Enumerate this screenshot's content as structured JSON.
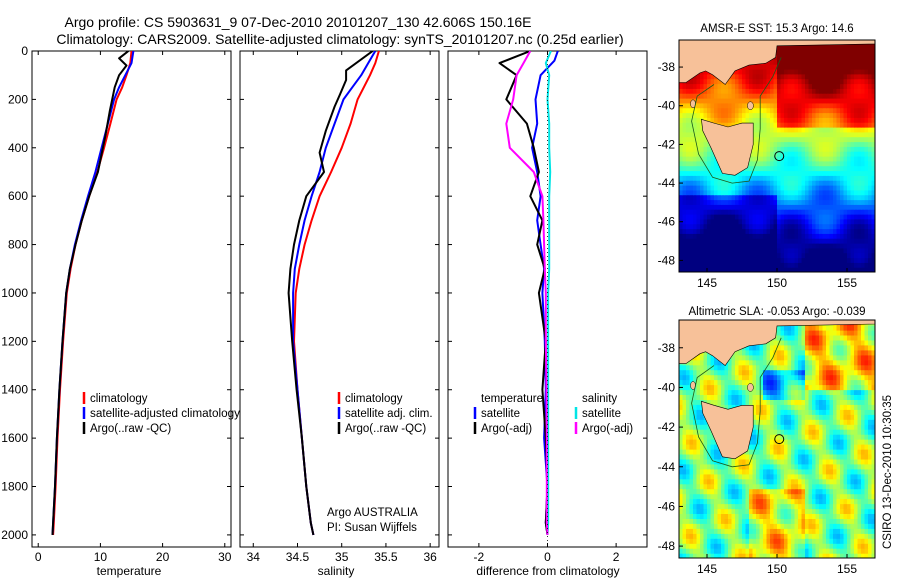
{
  "header": {
    "title_line1": "Argo profile: CS 5903631_9 07-Dec-2010 20101207_130 42.606S 150.16E",
    "title_line2": "Climatology: CARS2009. Satellite-adjusted climatology: synTS_20101207.nc (0.25d earlier)"
  },
  "side_text": "CSIRO 13-Dec-2010 10:30:35",
  "colors": {
    "climatology": "#ff0000",
    "satellite": "#0000ff",
    "argo": "#000000",
    "sat_salinity": "#00e5e5",
    "argo_adj_salinity": "#ff00ff",
    "land": "#f7c199"
  },
  "chart_data": [
    {
      "type": "line",
      "name_key": "temperature",
      "xlabel": "temperature",
      "xlim": [
        -1,
        31
      ],
      "ylim": [
        2050,
        0
      ],
      "xticks": [
        "0",
        "10",
        "20",
        "30"
      ],
      "yticks": [
        "0",
        "200",
        "400",
        "600",
        "800",
        "1000",
        "1200",
        "1400",
        "1600",
        "1800",
        "2000"
      ],
      "legend": [
        "climatology",
        "satellite-adjusted climatology",
        "Argo(..raw -QC)"
      ],
      "series": [
        {
          "name": "climatology",
          "color": "#ff0000",
          "x": [
            15.0,
            14.8,
            14.2,
            13.5,
            12.6,
            11.6,
            10.6,
            9.5,
            8.2,
            7.0,
            6.0,
            5.2,
            4.6,
            4.0,
            3.5,
            3.1,
            2.8,
            2.5,
            2.4
          ],
          "y": [
            0,
            50,
            100,
            150,
            200,
            300,
            400,
            500,
            600,
            700,
            800,
            900,
            1000,
            1200,
            1400,
            1600,
            1800,
            1950,
            2000
          ]
        },
        {
          "name": "satellite-adjusted climatology",
          "color": "#0000ff",
          "x": [
            15.3,
            15.0,
            14.0,
            13.0,
            12.2,
            11.2,
            10.2,
            9.2,
            8.0,
            6.9,
            5.9,
            5.1,
            4.5,
            3.9,
            3.4,
            3.0,
            2.7,
            2.4,
            2.3
          ],
          "y": [
            0,
            50,
            100,
            150,
            200,
            300,
            400,
            500,
            600,
            700,
            800,
            900,
            1000,
            1200,
            1400,
            1600,
            1800,
            1950,
            2000
          ]
        },
        {
          "name": "Argo(..raw -QC)",
          "color": "#000000",
          "x": [
            14.5,
            13.0,
            14.2,
            13.0,
            12.3,
            11.5,
            10.8,
            9.6,
            8.2,
            7.0,
            6.0,
            5.1,
            4.5,
            3.9,
            3.4,
            3.0,
            2.7,
            2.4,
            2.3
          ],
          "y": [
            0,
            30,
            60,
            100,
            150,
            250,
            350,
            500,
            600,
            700,
            800,
            900,
            1000,
            1200,
            1400,
            1600,
            1800,
            1950,
            2000
          ]
        }
      ]
    },
    {
      "type": "line",
      "name_key": "salinity",
      "xlabel": "salinity",
      "xlim": [
        33.85,
        36.1
      ],
      "ylim": [
        2050,
        0
      ],
      "xticks": [
        "34",
        "34.5",
        "35",
        "35.5",
        "36"
      ],
      "legend": [
        "climatology",
        "satellite adj. clim.",
        "Argo(..raw -QC)"
      ],
      "annotation": [
        "Argo AUSTRALIA",
        "PI: Susan Wijffels"
      ],
      "series": [
        {
          "name": "climatology",
          "color": "#ff0000",
          "x": [
            35.42,
            35.38,
            35.32,
            35.25,
            35.18,
            35.1,
            35.0,
            34.88,
            34.75,
            34.66,
            34.58,
            34.52,
            34.48,
            34.46,
            34.5,
            34.55,
            34.6,
            34.65,
            34.68
          ],
          "y": [
            0,
            50,
            100,
            150,
            200,
            300,
            400,
            500,
            600,
            700,
            800,
            900,
            1000,
            1200,
            1400,
            1600,
            1800,
            1950,
            2000
          ]
        },
        {
          "name": "satellite adj. clim.",
          "color": "#0000ff",
          "x": [
            35.38,
            35.3,
            35.22,
            35.12,
            35.02,
            34.92,
            34.82,
            34.75,
            34.66,
            34.58,
            34.52,
            34.47,
            34.45,
            34.45,
            34.5,
            34.55,
            34.6,
            34.65,
            34.68
          ],
          "y": [
            0,
            50,
            100,
            150,
            200,
            300,
            400,
            500,
            600,
            700,
            800,
            900,
            1000,
            1200,
            1400,
            1600,
            1800,
            1950,
            2000
          ]
        },
        {
          "name": "Argo(..raw -QC)",
          "color": "#000000",
          "x": [
            35.35,
            35.05,
            35.05,
            34.98,
            34.92,
            34.82,
            34.75,
            34.8,
            34.6,
            34.52,
            34.46,
            34.42,
            34.4,
            34.44,
            34.49,
            34.55,
            34.6,
            34.65,
            34.68
          ],
          "y": [
            0,
            80,
            120,
            180,
            230,
            330,
            420,
            500,
            600,
            700,
            800,
            900,
            1000,
            1200,
            1400,
            1600,
            1800,
            1950,
            2000
          ]
        }
      ]
    },
    {
      "type": "line",
      "name_key": "difference",
      "xlabel": "difference from climatology",
      "xlim": [
        -2.9,
        2.9
      ],
      "ylim": [
        2050,
        0
      ],
      "xticks": [
        "-2",
        "0",
        "2"
      ],
      "legend_left": [
        "temperature",
        "satellite",
        "Argo(-adj)"
      ],
      "legend_right": [
        "salinity",
        "satellite",
        "Argo(-adj)"
      ],
      "series": [
        {
          "name": "temperature satellite",
          "color": "#0000ff",
          "x": [
            0.3,
            0.2,
            -0.2,
            -0.35,
            -0.3,
            -0.45,
            -0.3,
            -0.2,
            -0.3,
            -0.2,
            -0.1,
            -0.15,
            -0.08,
            -0.05,
            -0.1,
            0.0,
            -0.05,
            0.0
          ],
          "y": [
            0,
            40,
            100,
            200,
            300,
            400,
            500,
            600,
            700,
            800,
            900,
            1000,
            1200,
            1400,
            1600,
            1800,
            1950,
            2000
          ]
        },
        {
          "name": "temperature Argo(-adj)",
          "color": "#000000",
          "x": [
            -0.5,
            -1.4,
            -0.9,
            -1.2,
            -0.6,
            -0.4,
            -0.25,
            -0.5,
            -0.15,
            -0.3,
            -0.08,
            -0.25,
            -0.05,
            -0.15,
            -0.05,
            0.0,
            -0.05,
            0.0
          ],
          "y": [
            0,
            50,
            100,
            200,
            300,
            400,
            500,
            600,
            700,
            800,
            900,
            1000,
            1200,
            1400,
            1600,
            1800,
            1950,
            2000
          ]
        },
        {
          "name": "salinity satellite",
          "color": "#00e5e5",
          "x": [
            0.1,
            -0.05,
            0.05,
            0.0,
            0.05,
            0.05,
            0.08,
            0.05,
            0.05,
            0.05,
            0.05,
            0.02,
            0.02,
            0.02,
            0.02,
            0.02,
            0.02,
            0.0
          ],
          "y": [
            0,
            50,
            100,
            200,
            300,
            400,
            500,
            600,
            700,
            800,
            900,
            1000,
            1200,
            1400,
            1600,
            1800,
            1950,
            2000
          ]
        },
        {
          "name": "salinity Argo(-adj)",
          "color": "#ff00ff",
          "x": [
            -0.5,
            -0.7,
            -0.9,
            -1.0,
            -1.2,
            -1.1,
            -0.4,
            -0.15,
            -0.12,
            -0.1,
            -0.08,
            -0.05,
            -0.05,
            -0.03,
            -0.02,
            -0.02,
            -0.02,
            0.0
          ],
          "y": [
            0,
            50,
            100,
            200,
            300,
            400,
            500,
            600,
            700,
            800,
            900,
            1000,
            1200,
            1400,
            1600,
            1800,
            1950,
            2000
          ]
        }
      ]
    },
    {
      "type": "heatmap",
      "name_key": "sst_map",
      "title": "AMSR-E SST: 15.3 Argo: 14.6",
      "xlim": [
        143,
        157
      ],
      "ylim": [
        -48.6,
        -36.6
      ],
      "xticks": [
        "145",
        "150",
        "155"
      ],
      "yticks": [
        "-38",
        "-40",
        "-42",
        "-44",
        "-46",
        "-48"
      ],
      "profile_location": {
        "lon": 150.16,
        "lat": -42.606
      }
    },
    {
      "type": "heatmap",
      "name_key": "sla_map",
      "title": "Altimetric SLA: -0.053 Argo: -0.039",
      "xlim": [
        143,
        157
      ],
      "ylim": [
        -48.6,
        -36.6
      ],
      "xticks": [
        "145",
        "150",
        "155"
      ],
      "yticks": [
        "-38",
        "-40",
        "-42",
        "-44",
        "-46",
        "-48"
      ],
      "profile_location": {
        "lon": 150.16,
        "lat": -42.606
      }
    }
  ]
}
